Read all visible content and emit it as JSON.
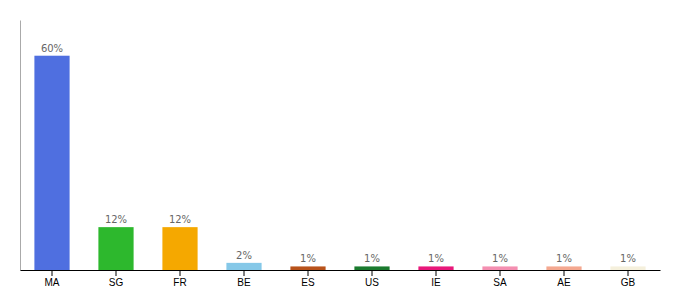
{
  "chart_data": {
    "type": "bar",
    "categories": [
      "MA",
      "SG",
      "FR",
      "BE",
      "ES",
      "US",
      "IE",
      "SA",
      "AE",
      "GB"
    ],
    "values": [
      60,
      12,
      12,
      2,
      1,
      1,
      1,
      1,
      1,
      1
    ],
    "value_labels": [
      "60%",
      "12%",
      "12%",
      "2%",
      "1%",
      "1%",
      "1%",
      "1%",
      "1%",
      "1%"
    ],
    "colors": [
      "#4F6FE0",
      "#2DB82D",
      "#F5A800",
      "#85C8E8",
      "#B8521A",
      "#1A7A2E",
      "#E8187A",
      "#F48FB1",
      "#F4A890",
      "#F5F0DC"
    ],
    "ylim": [
      0,
      70
    ],
    "data_labels": true,
    "tick_labels": "x",
    "grid": false
  }
}
